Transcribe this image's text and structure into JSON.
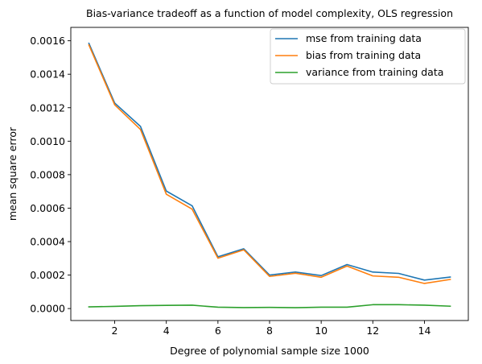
{
  "chart_data": {
    "type": "line",
    "title": "Bias-variance tradeoff as a function of model complexity, OLS regression",
    "xlabel": "Degree of polynomial sample size 1000",
    "ylabel": "mean square error",
    "xlim": [
      0.3,
      15.7
    ],
    "ylim": [
      -7.15e-05,
      0.00168
    ],
    "xticks": [
      2,
      4,
      6,
      8,
      10,
      12,
      14
    ],
    "xtick_labels": [
      "2",
      "4",
      "6",
      "8",
      "10",
      "12",
      "14"
    ],
    "yticks": [
      0,
      0.0002,
      0.0004,
      0.0006,
      0.0008,
      0.001,
      0.0012,
      0.0014,
      0.0016
    ],
    "ytick_labels": [
      "0.0000",
      "0.0002",
      "0.0004",
      "0.0006",
      "0.0008",
      "0.0010",
      "0.0012",
      "0.0014",
      "0.0016"
    ],
    "grid": false,
    "legend_position": "top-right",
    "x": [
      1,
      2,
      3,
      4,
      5,
      6,
      7,
      8,
      9,
      10,
      11,
      12,
      13,
      14,
      15
    ],
    "series": [
      {
        "name": "mse from training data",
        "color": "#1f77b4",
        "values": [
          0.001585,
          0.001228,
          0.001088,
          0.000702,
          0.000614,
          0.000309,
          0.000357,
          0.0002,
          0.000218,
          0.000197,
          0.000263,
          0.000218,
          0.00021,
          0.00017,
          0.000188
        ]
      },
      {
        "name": "bias from training data",
        "color": "#ff7f0e",
        "values": [
          0.001575,
          0.001217,
          0.00107,
          0.000683,
          0.000594,
          0.000301,
          0.000351,
          0.000192,
          0.000211,
          0.000187,
          0.000254,
          0.000195,
          0.000187,
          0.00015,
          0.000174
        ]
      },
      {
        "name": "variance from training data",
        "color": "#2ca02c",
        "values": [
          1e-05,
          1.3e-05,
          1.7e-05,
          1.9e-05,
          2e-05,
          8e-06,
          6e-06,
          7e-06,
          5e-06,
          8e-06,
          8e-06,
          2.3e-05,
          2.3e-05,
          2e-05,
          1.4e-05
        ]
      }
    ]
  }
}
